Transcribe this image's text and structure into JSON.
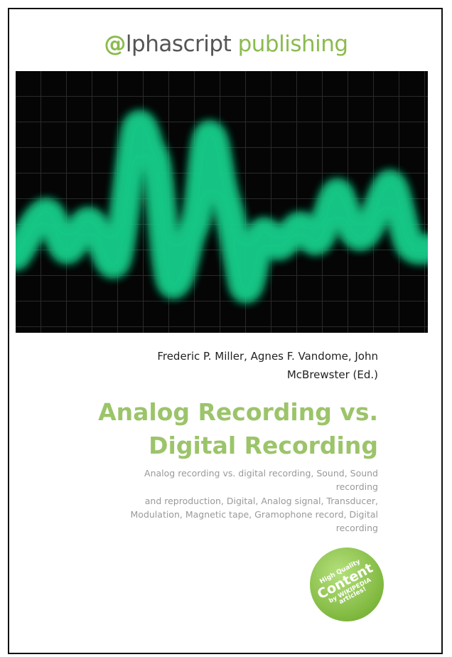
{
  "publisher": {
    "mark": "@",
    "name": "lphascript",
    "imprint": "publishing"
  },
  "authors": [
    "Frederic P. Miller, Agnes F. Vandome, John",
    "McBrewster (Ed.)"
  ],
  "title": [
    "Analog Recording vs.",
    "Digital Recording"
  ],
  "subtitle": [
    "Analog recording vs. digital recording, Sound, Sound",
    "recording",
    "and reproduction, Digital, Analog signal, Transducer,",
    "Modulation, Magnetic tape, Gramophone record, Digital",
    "recording"
  ],
  "badge": [
    "High Quality",
    "Content",
    "by WIKIPEDIA",
    "articles!"
  ]
}
